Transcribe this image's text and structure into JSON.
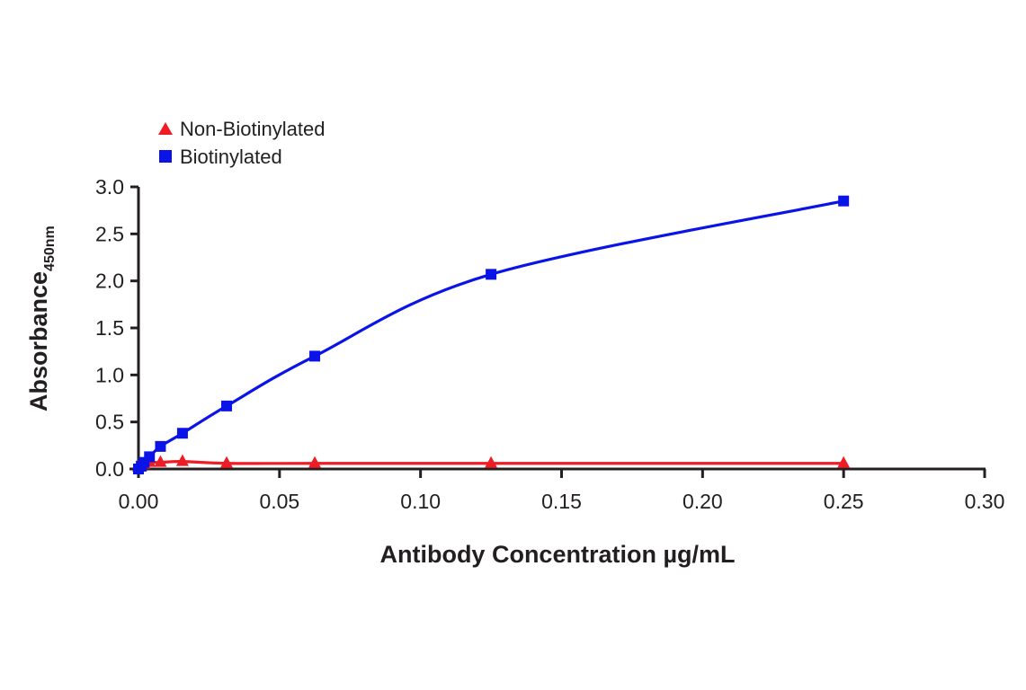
{
  "chart_data": {
    "type": "line",
    "title": "",
    "xlabel": "Antibody Concentration µg/mL",
    "ylabel": "Absorbance",
    "ylabel_subscript": "450nm",
    "xlim": [
      0,
      0.3
    ],
    "ylim": [
      0,
      3.0
    ],
    "xticks": [
      "0.00",
      "0.05",
      "0.10",
      "0.15",
      "0.20",
      "0.25",
      "0.30"
    ],
    "yticks": [
      "0.0",
      "0.5",
      "1.0",
      "1.5",
      "2.0",
      "2.5",
      "3.0"
    ],
    "grid": false,
    "legend_position": "top-left",
    "series": [
      {
        "name": "Non-Biotinylated",
        "color": "#ee1c25",
        "marker": "triangle",
        "x": [
          0.0,
          0.001,
          0.002,
          0.0039,
          0.0078,
          0.0156,
          0.03125,
          0.0625,
          0.125,
          0.25
        ],
        "y": [
          0.02,
          0.03,
          0.05,
          0.07,
          0.07,
          0.08,
          0.06,
          0.06,
          0.06,
          0.06
        ]
      },
      {
        "name": "Biotinylated",
        "color": "#0a14e6",
        "marker": "square",
        "x": [
          0.0,
          0.001,
          0.002,
          0.0039,
          0.0078,
          0.0156,
          0.03125,
          0.0625,
          0.125,
          0.25
        ],
        "y": [
          0.0,
          0.03,
          0.07,
          0.13,
          0.24,
          0.38,
          0.67,
          1.2,
          2.07,
          2.85
        ]
      }
    ]
  },
  "legend": {
    "items": [
      {
        "label": "Non-Biotinylated"
      },
      {
        "label": "Biotinylated"
      }
    ]
  },
  "axes": {
    "xlabel": "Antibody Concentration µg/mL",
    "ylabel": "Absorbance",
    "ylabel_sub": "450nm"
  }
}
